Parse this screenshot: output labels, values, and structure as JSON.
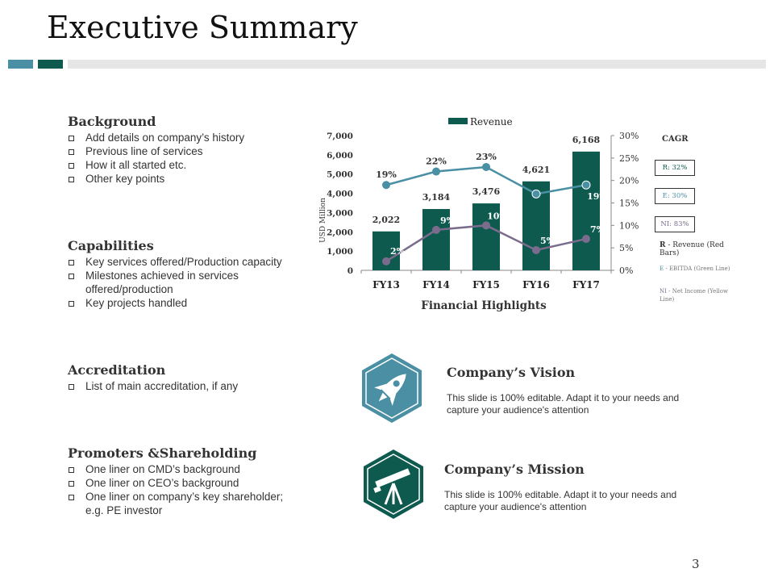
{
  "title": "Executive Summary",
  "colors": {
    "teal": "#4a8fa3",
    "dark_green": "#0e5a4f",
    "gray": "#e6e6e6",
    "net_income": "#7b6c8e"
  },
  "sections": [
    {
      "heading": "Background",
      "items": [
        "Add details on company’s history",
        "Previous line of services",
        "How it all started etc.",
        "Other key points"
      ]
    },
    {
      "heading": "Capabilities",
      "items": [
        "Key services offered/Production capacity",
        "Milestones achieved in services offered/production",
        "Key projects handled"
      ]
    },
    {
      "heading": "Accreditation",
      "items": [
        "List of main accreditation, if any"
      ]
    },
    {
      "heading": "Promoters &Shareholding",
      "items": [
        "One liner on CMD’s background",
        "One liner on CEO’s background",
        "One liner on company’s key shareholder; e.g. PE investor"
      ]
    }
  ],
  "chart_data": {
    "type": "bar",
    "title": "Financial Highlights",
    "categories": [
      "FY13",
      "FY14",
      "FY15",
      "FY16",
      "FY17"
    ],
    "ylabel": "USD Million",
    "ylim": [
      0,
      7000
    ],
    "y_ticks": [
      "0",
      "1,000",
      "2,000",
      "3,000",
      "4,000",
      "5,000",
      "6,000",
      "7,000"
    ],
    "y2lim": [
      0,
      30
    ],
    "y2_ticks": [
      "0%",
      "5%",
      "10%",
      "15%",
      "20%",
      "25%",
      "30%"
    ],
    "legend": "top",
    "series": [
      {
        "name": "Revenue",
        "type": "bar",
        "values": [
          2022,
          3184,
          3476,
          4621,
          6168
        ],
        "labels": [
          "2,022",
          "3,184",
          "3,476",
          "4,621",
          "6,168"
        ]
      },
      {
        "type": "line",
        "axis": "right",
        "values": [
          19,
          22,
          23,
          17,
          19
        ],
        "labels": [
          "19%",
          "22%",
          "23%",
          "",
          "19%"
        ]
      },
      {
        "type": "line",
        "axis": "right",
        "values": [
          2,
          9,
          10,
          4.5,
          7
        ],
        "labels": [
          "2%",
          "9%",
          "10%",
          "5%",
          "7%"
        ]
      }
    ]
  },
  "cagr": {
    "heading": "CAGR",
    "boxes": [
      "R: 32%",
      "E: 30%",
      "NI: 83%"
    ],
    "notes": [
      {
        "key": "R",
        "text": " - Revenue (Red Bars)"
      },
      {
        "key": "E",
        "text": " - EBITDA (Green Line)"
      },
      {
        "key": "NI",
        "text": " - Net Income (Yellow Line)"
      }
    ]
  },
  "vision": {
    "title": "Company’s Vision",
    "text": "This slide is 100% editable. Adapt it to your needs and capture your audience's attention",
    "icon": "rocket-icon"
  },
  "mission": {
    "title": "Company’s Mission",
    "text": "This slide is 100% editable. Adapt it to your needs and capture your audience's attention",
    "icon": "telescope-icon"
  },
  "page_number": "3"
}
